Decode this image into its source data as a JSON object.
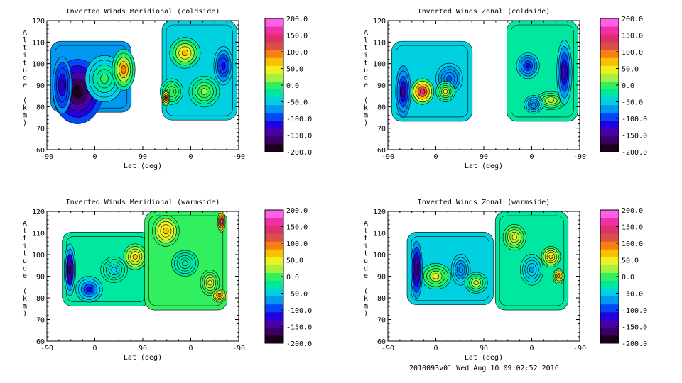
{
  "footer": "2010093v01 Wed Aug 10 09:02:52 2016",
  "colorbar": {
    "ticks": [
      "200.0",
      "150.0",
      "100.0",
      "50.0",
      "0.0",
      "-50.0",
      "-100.0",
      "-150.0",
      "-200.0"
    ],
    "range": [
      -200,
      200
    ],
    "colors": [
      "#1a0018",
      "#3a0060",
      "#4800a8",
      "#2400e0",
      "#0048f8",
      "#0098f0",
      "#00d0e0",
      "#00e8a0",
      "#30f060",
      "#a8f040",
      "#f0f020",
      "#f8c000",
      "#f88010",
      "#d85048",
      "#e03068",
      "#f030a8",
      "#ff60e8"
    ]
  },
  "chart_data": [
    {
      "type": "heatmap",
      "title": "Inverted Winds Meridional (coldside)",
      "xlabel": "Lat (deg)",
      "ylabel": "Altitude (km)",
      "x_ticks": [
        "-90",
        "0",
        "90",
        "0",
        "-90"
      ],
      "y_ticks": [
        "60",
        "70",
        "80",
        "90",
        "100",
        "110",
        "120"
      ],
      "ylim": [
        60,
        120
      ],
      "zlim": [
        -200,
        200
      ],
      "contours": true
    },
    {
      "type": "heatmap",
      "title": "Inverted Winds Zonal (coldside)",
      "xlabel": "Lat (deg)",
      "ylabel": "Altitude (km)",
      "x_ticks": [
        "-90",
        "0",
        "90",
        "0",
        "-90"
      ],
      "y_ticks": [
        "60",
        "70",
        "80",
        "90",
        "100",
        "110",
        "120"
      ],
      "ylim": [
        60,
        120
      ],
      "zlim": [
        -200,
        200
      ],
      "contours": true
    },
    {
      "type": "heatmap",
      "title": "Inverted Winds Meridional (warmside)",
      "xlabel": "Lat (deg)",
      "ylabel": "Altitude (km)",
      "x_ticks": [
        "-90",
        "0",
        "90",
        "0",
        "-90"
      ],
      "y_ticks": [
        "60",
        "70",
        "80",
        "90",
        "100",
        "110",
        "120"
      ],
      "ylim": [
        60,
        120
      ],
      "zlim": [
        -200,
        200
      ],
      "contours": true
    },
    {
      "type": "heatmap",
      "title": "Inverted Winds Zonal (warmside)",
      "xlabel": "Lat (deg)",
      "ylabel": "Altitude (km)",
      "x_ticks": [
        "-90",
        "0",
        "90",
        "0",
        "-90"
      ],
      "y_ticks": [
        "60",
        "70",
        "80",
        "90",
        "100",
        "110",
        "120"
      ],
      "ylim": [
        60,
        120
      ],
      "zlim": [
        -200,
        200
      ],
      "contours": true
    }
  ]
}
